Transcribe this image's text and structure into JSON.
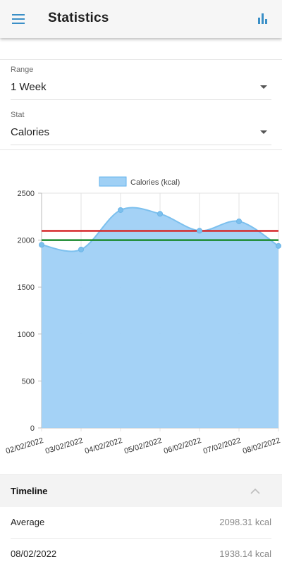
{
  "header": {
    "title": "Statistics",
    "menu_icon": "menu-icon",
    "chart_icon": "bar-chart-icon",
    "accent": "#3a8fc7"
  },
  "filters": {
    "range": {
      "label": "Range",
      "value": "1 Week"
    },
    "stat": {
      "label": "Stat",
      "value": "Calories"
    }
  },
  "chart_data": {
    "type": "area",
    "legend": "Calories (kcal)",
    "legend_position": "top",
    "x": [
      "02/02/2022",
      "03/02/2022",
      "04/02/2022",
      "05/02/2022",
      "06/02/2022",
      "07/02/2022",
      "08/02/2022"
    ],
    "series": [
      {
        "name": "Calories (kcal)",
        "values": [
          1950,
          1900,
          2320,
          2280,
          2100,
          2200,
          1938.14
        ],
        "color": "#63b3ed"
      }
    ],
    "reference_lines": [
      {
        "value": 2098.31,
        "color": "#d62728"
      },
      {
        "value": 2000,
        "color": "#1a8a2e"
      }
    ],
    "y_ticks": [
      "0",
      "500",
      "1000",
      "1500",
      "2000",
      "2500"
    ],
    "ylim": [
      0,
      2500
    ],
    "grid": true
  },
  "timeline": {
    "title": "Timeline",
    "rows": [
      {
        "label": "Average",
        "value": "2098.31 kcal"
      },
      {
        "label": "08/02/2022",
        "value": "1938.14 kcal"
      }
    ]
  }
}
